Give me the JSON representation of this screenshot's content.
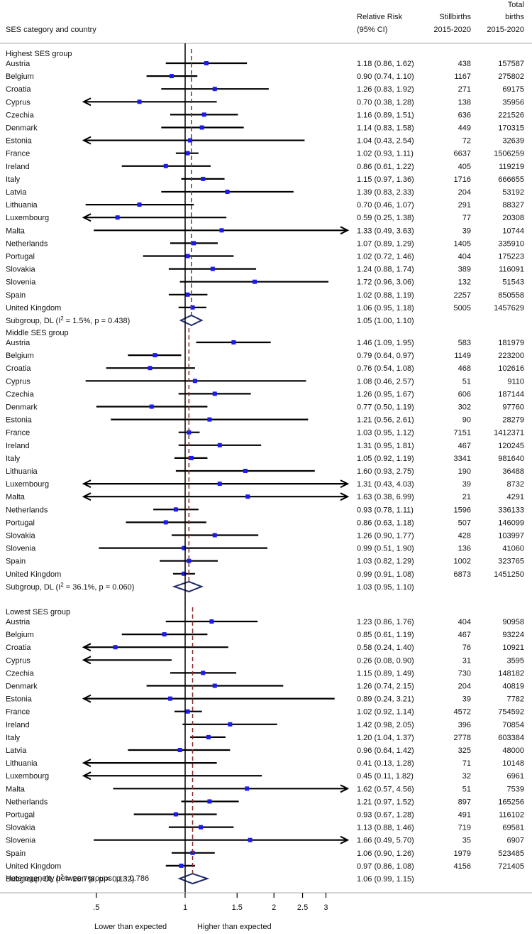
{
  "chart_data": {
    "type": "forest",
    "scale": "log",
    "null_value": 1,
    "xlim": [
      0.5,
      3.0
    ],
    "xticks": [
      {
        "v": 0.5,
        "label": ".5"
      },
      {
        "v": 1,
        "label": "1"
      },
      {
        "v": 1.5,
        "label": "1.5"
      },
      {
        "v": 2,
        "label": "2"
      },
      {
        "v": 2.5,
        "label": "2.5"
      },
      {
        "v": 3,
        "label": "3"
      }
    ],
    "xlabel_left": "Lower than expected",
    "xlabel_right": "Higher than expected",
    "header": {
      "col_label": "SES category and country",
      "rr_line1": "Relative Risk",
      "rr_line2": "(95% CI)",
      "sb_line1": "Stillbirths",
      "sb_line2": "2015-2020",
      "tb_line1": "Total",
      "tb_line2": "births",
      "tb_line3": "2015-2020"
    },
    "groups": [
      {
        "name": "Highest SES group",
        "rows": [
          {
            "country": "Austria",
            "rr": 1.18,
            "lo": 0.86,
            "hi": 1.62,
            "rr_text": "1.18 (0.86, 1.62)",
            "stillbirths": "438",
            "births": "157587"
          },
          {
            "country": "Belgium",
            "rr": 0.9,
            "lo": 0.74,
            "hi": 1.1,
            "rr_text": "0.90 (0.74, 1.10)",
            "stillbirths": "1167",
            "births": "275802"
          },
          {
            "country": "Croatia",
            "rr": 1.26,
            "lo": 0.83,
            "hi": 1.92,
            "rr_text": "1.26 (0.83, 1.92)",
            "stillbirths": "271",
            "births": "69175"
          },
          {
            "country": "Cyprus",
            "rr": 0.7,
            "lo": 0.38,
            "hi": 1.28,
            "rr_text": "0.70 (0.38, 1.28)",
            "stillbirths": "138",
            "births": "35956"
          },
          {
            "country": "Czechia",
            "rr": 1.16,
            "lo": 0.89,
            "hi": 1.51,
            "rr_text": "1.16 (0.89, 1.51)",
            "stillbirths": "636",
            "births": "221526"
          },
          {
            "country": "Denmark",
            "rr": 1.14,
            "lo": 0.83,
            "hi": 1.58,
            "rr_text": "1.14 (0.83, 1.58)",
            "stillbirths": "449",
            "births": "170315"
          },
          {
            "country": "Estonia",
            "rr": 1.04,
            "lo": 0.43,
            "hi": 2.54,
            "rr_text": "1.04 (0.43, 2.54)",
            "stillbirths": "72",
            "births": "32639"
          },
          {
            "country": "France",
            "rr": 1.02,
            "lo": 0.93,
            "hi": 1.11,
            "rr_text": "1.02 (0.93, 1.11)",
            "stillbirths": "6637",
            "births": "1506259"
          },
          {
            "country": "Ireland",
            "rr": 0.86,
            "lo": 0.61,
            "hi": 1.22,
            "rr_text": "0.86 (0.61, 1.22)",
            "stillbirths": "405",
            "births": "119219"
          },
          {
            "country": "Italy",
            "rr": 1.15,
            "lo": 0.97,
            "hi": 1.36,
            "rr_text": "1.15 (0.97, 1.36)",
            "stillbirths": "1716",
            "births": "666655"
          },
          {
            "country": "Latvia",
            "rr": 1.39,
            "lo": 0.83,
            "hi": 2.33,
            "rr_text": "1.39 (0.83, 2.33)",
            "stillbirths": "204",
            "births": "53192"
          },
          {
            "country": "Lithuania",
            "rr": 0.7,
            "lo": 0.46,
            "hi": 1.07,
            "rr_text": "0.70 (0.46, 1.07)",
            "stillbirths": "291",
            "births": "88327"
          },
          {
            "country": "Luxembourg",
            "rr": 0.59,
            "lo": 0.25,
            "hi": 1.38,
            "rr_text": "0.59 (0.25, 1.38)",
            "stillbirths": "77",
            "births": "20308"
          },
          {
            "country": "Malta",
            "rr": 1.33,
            "lo": 0.49,
            "hi": 3.63,
            "rr_text": "1.33 (0.49, 3.63)",
            "stillbirths": "39",
            "births": "10744"
          },
          {
            "country": "Netherlands",
            "rr": 1.07,
            "lo": 0.89,
            "hi": 1.29,
            "rr_text": "1.07 (0.89, 1.29)",
            "stillbirths": "1405",
            "births": "335910"
          },
          {
            "country": "Portugal",
            "rr": 1.02,
            "lo": 0.72,
            "hi": 1.46,
            "rr_text": "1.02 (0.72, 1.46)",
            "stillbirths": "404",
            "births": "175223"
          },
          {
            "country": "Slovakia",
            "rr": 1.24,
            "lo": 0.88,
            "hi": 1.74,
            "rr_text": "1.24 (0.88, 1.74)",
            "stillbirths": "389",
            "births": "116091"
          },
          {
            "country": "Slovenia",
            "rr": 1.72,
            "lo": 0.96,
            "hi": 3.06,
            "rr_text": "1.72 (0.96, 3.06)",
            "stillbirths": "132",
            "births": "51543"
          },
          {
            "country": "Spain",
            "rr": 1.02,
            "lo": 0.88,
            "hi": 1.19,
            "rr_text": "1.02 (0.88, 1.19)",
            "stillbirths": "2257",
            "births": "850558"
          },
          {
            "country": "United Kingdom",
            "rr": 1.06,
            "lo": 0.95,
            "hi": 1.18,
            "rr_text": "1.06 (0.95, 1.18)",
            "stillbirths": "5005",
            "births": "1457629"
          }
        ],
        "subgroup": {
          "label_pre": "Subgroup, DL (I",
          "sup": "2",
          "label_post": " = 1.5%, p = 0.438)",
          "rr": 1.05,
          "lo": 1.0,
          "hi": 1.1,
          "rr_text": "1.05 (1.00, 1.10)"
        }
      },
      {
        "name": "Middle SES group",
        "rows": [
          {
            "country": "Austria",
            "rr": 1.46,
            "lo": 1.09,
            "hi": 1.95,
            "rr_text": "1.46 (1.09, 1.95)",
            "stillbirths": "583",
            "births": "181979"
          },
          {
            "country": "Belgium",
            "rr": 0.79,
            "lo": 0.64,
            "hi": 0.97,
            "rr_text": "0.79 (0.64, 0.97)",
            "stillbirths": "1149",
            "births": "223200"
          },
          {
            "country": "Croatia",
            "rr": 0.76,
            "lo": 0.54,
            "hi": 1.08,
            "rr_text": "0.76 (0.54, 1.08)",
            "stillbirths": "468",
            "births": "102616"
          },
          {
            "country": "Cyprus",
            "rr": 1.08,
            "lo": 0.46,
            "hi": 2.57,
            "rr_text": "1.08 (0.46, 2.57)",
            "stillbirths": "51",
            "births": "9110"
          },
          {
            "country": "Czechia",
            "rr": 1.26,
            "lo": 0.95,
            "hi": 1.67,
            "rr_text": "1.26 (0.95, 1.67)",
            "stillbirths": "606",
            "births": "187144"
          },
          {
            "country": "Denmark",
            "rr": 0.77,
            "lo": 0.5,
            "hi": 1.19,
            "rr_text": "0.77 (0.50, 1.19)",
            "stillbirths": "302",
            "births": "97760"
          },
          {
            "country": "Estonia",
            "rr": 1.21,
            "lo": 0.56,
            "hi": 2.61,
            "rr_text": "1.21 (0.56, 2.61)",
            "stillbirths": "90",
            "births": "28279"
          },
          {
            "country": "France",
            "rr": 1.03,
            "lo": 0.95,
            "hi": 1.12,
            "rr_text": "1.03 (0.95, 1.12)",
            "stillbirths": "7151",
            "births": "1412371"
          },
          {
            "country": "Ireland",
            "rr": 1.31,
            "lo": 0.95,
            "hi": 1.81,
            "rr_text": "1.31 (0.95, 1.81)",
            "stillbirths": "467",
            "births": "120245"
          },
          {
            "country": "Italy",
            "rr": 1.05,
            "lo": 0.92,
            "hi": 1.19,
            "rr_text": "1.05 (0.92, 1.19)",
            "stillbirths": "3341",
            "births": "981640"
          },
          {
            "country": "Lithuania",
            "rr": 1.6,
            "lo": 0.93,
            "hi": 2.75,
            "rr_text": "1.60 (0.93, 2.75)",
            "stillbirths": "190",
            "births": "36488"
          },
          {
            "country": "Luxembourg",
            "rr": 1.31,
            "lo": 0.43,
            "hi": 4.03,
            "rr_text": "1.31 (0.43, 4.03)",
            "stillbirths": "39",
            "births": "8732"
          },
          {
            "country": "Malta",
            "rr": 1.63,
            "lo": 0.38,
            "hi": 6.99,
            "rr_text": "1.63 (0.38, 6.99)",
            "stillbirths": "21",
            "births": "4291"
          },
          {
            "country": "Netherlands",
            "rr": 0.93,
            "lo": 0.78,
            "hi": 1.11,
            "rr_text": "0.93 (0.78, 1.11)",
            "stillbirths": "1596",
            "births": "336133"
          },
          {
            "country": "Portugal",
            "rr": 0.86,
            "lo": 0.63,
            "hi": 1.18,
            "rr_text": "0.86 (0.63, 1.18)",
            "stillbirths": "507",
            "births": "146099"
          },
          {
            "country": "Slovakia",
            "rr": 1.26,
            "lo": 0.9,
            "hi": 1.77,
            "rr_text": "1.26 (0.90, 1.77)",
            "stillbirths": "428",
            "births": "103997"
          },
          {
            "country": "Slovenia",
            "rr": 0.99,
            "lo": 0.51,
            "hi": 1.9,
            "rr_text": "0.99 (0.51, 1.90)",
            "stillbirths": "136",
            "births": "41060"
          },
          {
            "country": "Spain",
            "rr": 1.03,
            "lo": 0.82,
            "hi": 1.29,
            "rr_text": "1.03 (0.82, 1.29)",
            "stillbirths": "1002",
            "births": "323765"
          },
          {
            "country": "United Kingdom",
            "rr": 0.99,
            "lo": 0.91,
            "hi": 1.08,
            "rr_text": "0.99 (0.91, 1.08)",
            "stillbirths": "6873",
            "births": "1451250"
          }
        ],
        "subgroup": {
          "label_pre": "Subgroup, DL (I",
          "sup": "2",
          "label_post": " = 36.1%, p = 0.060)",
          "rr": 1.03,
          "lo": 0.95,
          "hi": 1.1,
          "rr_text": "1.03 (0.95, 1.10)"
        }
      },
      {
        "name": "Lowest SES group",
        "rows": [
          {
            "country": "Austria",
            "rr": 1.23,
            "lo": 0.86,
            "hi": 1.76,
            "rr_text": "1.23 (0.86, 1.76)",
            "stillbirths": "404",
            "births": "90958"
          },
          {
            "country": "Belgium",
            "rr": 0.85,
            "lo": 0.61,
            "hi": 1.19,
            "rr_text": "0.85 (0.61, 1.19)",
            "stillbirths": "467",
            "births": "93224"
          },
          {
            "country": "Croatia",
            "rr": 0.58,
            "lo": 0.24,
            "hi": 1.4,
            "rr_text": "0.58 (0.24, 1.40)",
            "stillbirths": "76",
            "births": "10921"
          },
          {
            "country": "Cyprus",
            "rr": 0.26,
            "lo": 0.08,
            "hi": 0.9,
            "rr_text": "0.26 (0.08, 0.90)",
            "stillbirths": "31",
            "births": "3595"
          },
          {
            "country": "Czechia",
            "rr": 1.15,
            "lo": 0.89,
            "hi": 1.49,
            "rr_text": "1.15 (0.89, 1.49)",
            "stillbirths": "730",
            "births": "148182"
          },
          {
            "country": "Denmark",
            "rr": 1.26,
            "lo": 0.74,
            "hi": 2.15,
            "rr_text": "1.26 (0.74, 2.15)",
            "stillbirths": "204",
            "births": "40819"
          },
          {
            "country": "Estonia",
            "rr": 0.89,
            "lo": 0.24,
            "hi": 3.21,
            "rr_text": "0.89 (0.24, 3.21)",
            "stillbirths": "39",
            "births": "7782"
          },
          {
            "country": "France",
            "rr": 1.02,
            "lo": 0.92,
            "hi": 1.14,
            "rr_text": "1.02 (0.92, 1.14)",
            "stillbirths": "4572",
            "births": "754592"
          },
          {
            "country": "Ireland",
            "rr": 1.42,
            "lo": 0.98,
            "hi": 2.05,
            "rr_text": "1.42 (0.98, 2.05)",
            "stillbirths": "396",
            "births": "70854"
          },
          {
            "country": "Italy",
            "rr": 1.2,
            "lo": 1.04,
            "hi": 1.37,
            "rr_text": "1.20 (1.04, 1.37)",
            "stillbirths": "2778",
            "births": "603384"
          },
          {
            "country": "Latvia",
            "rr": 0.96,
            "lo": 0.64,
            "hi": 1.42,
            "rr_text": "0.96 (0.64, 1.42)",
            "stillbirths": "325",
            "births": "48000"
          },
          {
            "country": "Lithuania",
            "rr": 0.41,
            "lo": 0.13,
            "hi": 1.28,
            "rr_text": "0.41 (0.13, 1.28)",
            "stillbirths": "71",
            "births": "10148"
          },
          {
            "country": "Luxembourg",
            "rr": 0.45,
            "lo": 0.11,
            "hi": 1.82,
            "rr_text": "0.45 (0.11, 1.82)",
            "stillbirths": "32",
            "births": "6961"
          },
          {
            "country": "Malta",
            "rr": 1.62,
            "lo": 0.57,
            "hi": 4.56,
            "rr_text": "1.62 (0.57, 4.56)",
            "stillbirths": "51",
            "births": "7539"
          },
          {
            "country": "Netherlands",
            "rr": 1.21,
            "lo": 0.97,
            "hi": 1.52,
            "rr_text": "1.21 (0.97, 1.52)",
            "stillbirths": "897",
            "births": "165256"
          },
          {
            "country": "Portugal",
            "rr": 0.93,
            "lo": 0.67,
            "hi": 1.28,
            "rr_text": "0.93 (0.67, 1.28)",
            "stillbirths": "491",
            "births": "116102"
          },
          {
            "country": "Slovakia",
            "rr": 1.13,
            "lo": 0.88,
            "hi": 1.46,
            "rr_text": "1.13 (0.88, 1.46)",
            "stillbirths": "719",
            "births": "69581"
          },
          {
            "country": "Slovenia",
            "rr": 1.66,
            "lo": 0.49,
            "hi": 5.7,
            "rr_text": "1.66 (0.49, 5.70)",
            "stillbirths": "35",
            "births": "6907"
          },
          {
            "country": "Spain",
            "rr": 1.06,
            "lo": 0.9,
            "hi": 1.26,
            "rr_text": "1.06 (0.90, 1.26)",
            "stillbirths": "1979",
            "births": "523485"
          },
          {
            "country": "United Kingdom",
            "rr": 0.97,
            "lo": 0.86,
            "hi": 1.08,
            "rr_text": "0.97 (0.86, 1.08)",
            "stillbirths": "4156",
            "births": "721405"
          }
        ],
        "subgroup": {
          "label_pre": "Subgroup, DL (I",
          "sup": "2",
          "label_post": " = 26.7%, p = 0.132)",
          "rr": 1.06,
          "lo": 0.99,
          "hi": 1.15,
          "rr_text": "1.06 (0.99, 1.15)"
        }
      }
    ],
    "heterogeneity": "Heterogeneity between groups: p = 0.786",
    "colors": {
      "point": "#1c1cf0",
      "diamond": "#1f2a6b",
      "pooled_line": "#8b2a2a",
      "line": "#000000"
    }
  }
}
